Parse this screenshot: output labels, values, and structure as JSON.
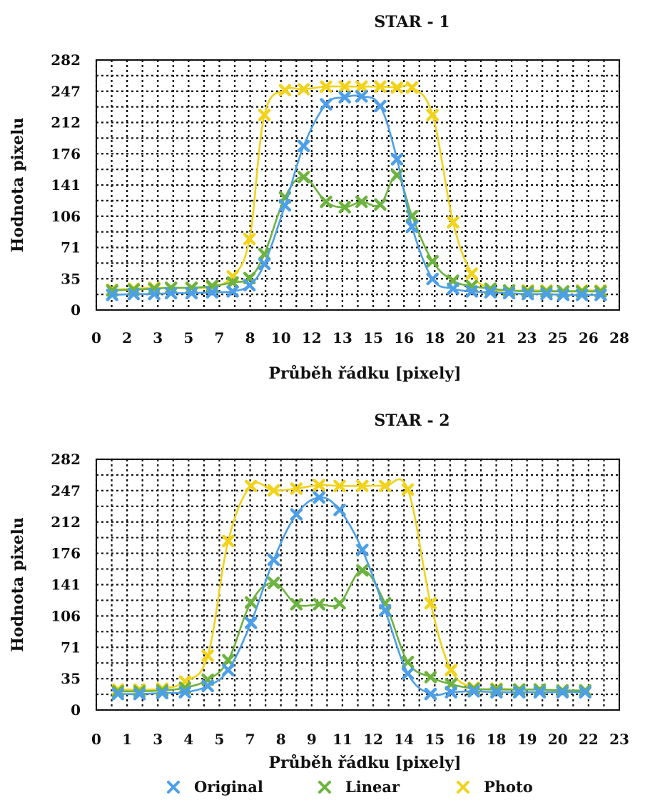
{
  "chart_data": [
    {
      "type": "line",
      "title": "STAR - 1",
      "xlabel": "Průběh řádku [pixely]",
      "ylabel": "Hodnota pixelu",
      "xlim": [
        0,
        28
      ],
      "ylim": [
        0,
        282
      ],
      "x_ticks": [
        "0",
        "2",
        "3",
        "5",
        "7",
        "8",
        "10",
        "12",
        "13",
        "15",
        "16",
        "18",
        "20",
        "21",
        "23",
        "25",
        "26",
        "28"
      ],
      "y_ticks": [
        "0",
        "35",
        "71",
        "106",
        "141",
        "176",
        "212",
        "247",
        "282"
      ],
      "grid": true,
      "x": [
        0.85,
        2.0,
        3.1,
        4.0,
        5.1,
        6.2,
        7.3,
        8.2,
        9.0,
        10.1,
        11.1,
        12.3,
        13.3,
        14.2,
        15.2,
        16.1,
        16.9,
        18.0,
        19.1,
        20.1,
        21.1,
        22.1,
        23.1,
        24.1,
        25.0,
        26.0,
        27.0
      ],
      "series": [
        {
          "name": "Original",
          "color": "#4C9FE8",
          "values": [
            17,
            18,
            18,
            19,
            19,
            20,
            21,
            28,
            52,
            118,
            185,
            232,
            240,
            241,
            230,
            170,
            94,
            35,
            24,
            21,
            20,
            19,
            18,
            18,
            17,
            17,
            17
          ]
        },
        {
          "name": "Linear",
          "color": "#6DB33F",
          "values": [
            22,
            23,
            24,
            25,
            25,
            27,
            31,
            36,
            63,
            127,
            150,
            122,
            116,
            122,
            119,
            152,
            106,
            55,
            33,
            27,
            24,
            22,
            21,
            21,
            21,
            21,
            21
          ]
        },
        {
          "name": "Photo",
          "color": "#F2D31B",
          "values": [
            23,
            24,
            25,
            25,
            25,
            26,
            38,
            80,
            220,
            248,
            249,
            252,
            252,
            252,
            252,
            251,
            251,
            220,
            99,
            41,
            24,
            22,
            22,
            22,
            21,
            22,
            22
          ]
        }
      ]
    },
    {
      "type": "line",
      "title": "STAR - 2",
      "xlabel": "Průběh řádku [pixely]",
      "ylabel": "Hodnota pixelu",
      "xlim": [
        0,
        23
      ],
      "ylim": [
        0,
        282
      ],
      "x_ticks": [
        "0",
        "1",
        "3",
        "4",
        "5",
        "7",
        "8",
        "9",
        "11",
        "12",
        "14",
        "15",
        "16",
        "18",
        "19",
        "20",
        "22",
        "23"
      ],
      "y_ticks": [
        "0",
        "35",
        "71",
        "106",
        "141",
        "176",
        "212",
        "247",
        "282"
      ],
      "grid": true,
      "x": [
        0.95,
        1.9,
        2.9,
        3.9,
        4.9,
        5.8,
        6.8,
        7.8,
        8.8,
        9.8,
        10.7,
        11.7,
        12.7,
        13.7,
        14.7,
        15.6,
        16.6,
        17.6,
        18.6,
        19.5,
        20.5,
        21.5
      ],
      "series": [
        {
          "name": "Original",
          "color": "#4C9FE8",
          "values": [
            18,
            18,
            19,
            20,
            27,
            45,
            98,
            169,
            220,
            239,
            225,
            180,
            112,
            41,
            18,
            20,
            21,
            20,
            20,
            20,
            20,
            20
          ]
        },
        {
          "name": "Linear",
          "color": "#6DB33F",
          "values": [
            21,
            21,
            22,
            25,
            34,
            56,
            121,
            143,
            119,
            119,
            120,
            157,
            120,
            54,
            37,
            29,
            24,
            23,
            23,
            23,
            22,
            22
          ]
        },
        {
          "name": "Photo",
          "color": "#F2D31B",
          "values": [
            23,
            23,
            24,
            32,
            61,
            190,
            252,
            247,
            249,
            253,
            252,
            252,
            252,
            248,
            120,
            45,
            25,
            24,
            23,
            23,
            22,
            22
          ]
        }
      ]
    }
  ],
  "legend": [
    {
      "name": "Original",
      "color": "#4C9FE8",
      "icon": "cross-marker-icon"
    },
    {
      "name": "Linear",
      "color": "#6DB33F",
      "icon": "cross-marker-icon"
    },
    {
      "name": "Photo",
      "color": "#F2D31B",
      "icon": "cross-marker-icon"
    }
  ]
}
